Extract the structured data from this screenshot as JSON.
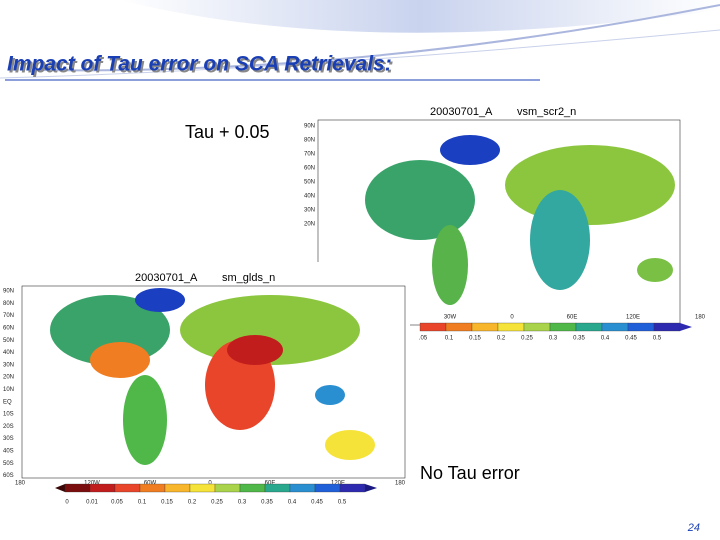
{
  "title": "Impact of Tau error on SCA Retrievals:",
  "labels": {
    "top": "Tau + 0.05",
    "bottom": "No Tau error"
  },
  "page_number": "24",
  "maps": [
    {
      "date": "20030701_A",
      "variable": "vsm_scr2_n",
      "y_ticks": [
        "90N",
        "80N",
        "70N",
        "60N",
        "50N",
        "40N",
        "30N",
        "20N"
      ],
      "x_ticks": [
        "30W",
        "0",
        "60E",
        "120E",
        "180"
      ],
      "colorbar_labels": [
        ".05",
        "0.1",
        "0.15",
        "0.2",
        "0.25",
        "0.3",
        "0.35",
        "0.4",
        "0.45",
        "0.5"
      ]
    },
    {
      "date": "20030701_A",
      "variable": "sm_glds_n",
      "y_ticks": [
        "90N",
        "80N",
        "70N",
        "60N",
        "50N",
        "40N",
        "30N",
        "20N",
        "10N",
        "EQ",
        "10S",
        "20S",
        "30S",
        "40S",
        "50S",
        "60S"
      ],
      "x_ticks": [
        "180",
        "120W",
        "60W",
        "0",
        "60E",
        "120E",
        "180"
      ],
      "colorbar_labels": [
        "0",
        "0.01",
        "0.05",
        "0.1",
        "0.15",
        "0.2",
        "0.25",
        "0.3",
        "0.35",
        "0.4",
        "0.45",
        "0.5"
      ]
    }
  ]
}
